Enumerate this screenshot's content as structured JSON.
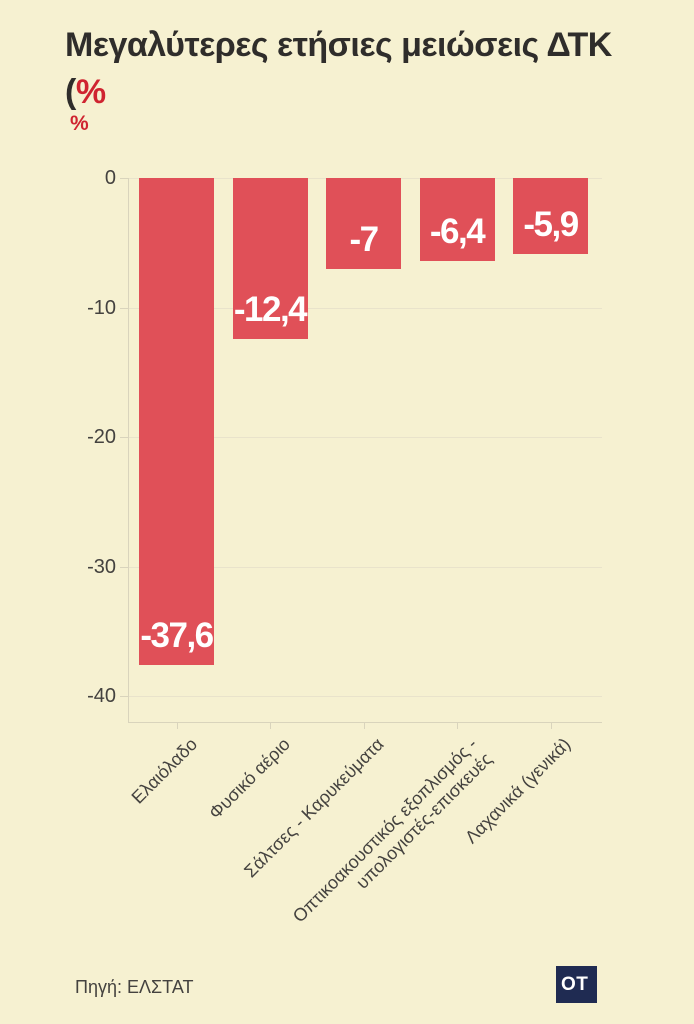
{
  "title": {
    "line1": "Μεγαλύτερες ετήσιες μειώσεις ΔΤΚ",
    "line2_paren": "(",
    "line2_pct": "%"
  },
  "y_axis_unit": "%",
  "chart_data": {
    "type": "bar",
    "title": "Μεγαλύτερες ετήσιες μειώσεις ΔΤΚ (%",
    "categories": [
      "Ελαιόλαδο",
      "Φυσικό αέριο",
      "Σάλτσες - Καρυκεύματα",
      "Οπτικοακουστικός εξοπλισμός -\nυπολογιστές-επισκευές",
      "Λαχανικά (γενικά)"
    ],
    "values": [
      -37.6,
      -12.4,
      -7,
      -6.4,
      -5.9
    ],
    "value_labels": [
      "-37,6",
      "-12,4",
      "-7",
      "-6,4",
      "-5,9"
    ],
    "xlabel": "",
    "ylabel": "%",
    "ylim": [
      -40,
      0
    ],
    "yticks": [
      0,
      -10,
      -20,
      -30,
      -40
    ],
    "ytick_labels": [
      "0",
      "-10",
      "-20",
      "-30",
      "-40"
    ],
    "grid": true,
    "legend": "none",
    "bar_color": "#e05058"
  },
  "footer": {
    "source": "Πηγή: ΕΛΣΤΑΤ",
    "logo_text": "OT"
  },
  "colors": {
    "background": "#f6f1d1",
    "bar": "#e05058",
    "title_text": "#2f2d2b",
    "accent_red": "#cf2430",
    "axis_text": "#44423f",
    "bar_value_text": "#ffffff",
    "gridline": "#e9e3cb",
    "axis_line": "#d9d4bc",
    "logo_bg": "#1f2b52",
    "logo_text": "#ffffff"
  }
}
